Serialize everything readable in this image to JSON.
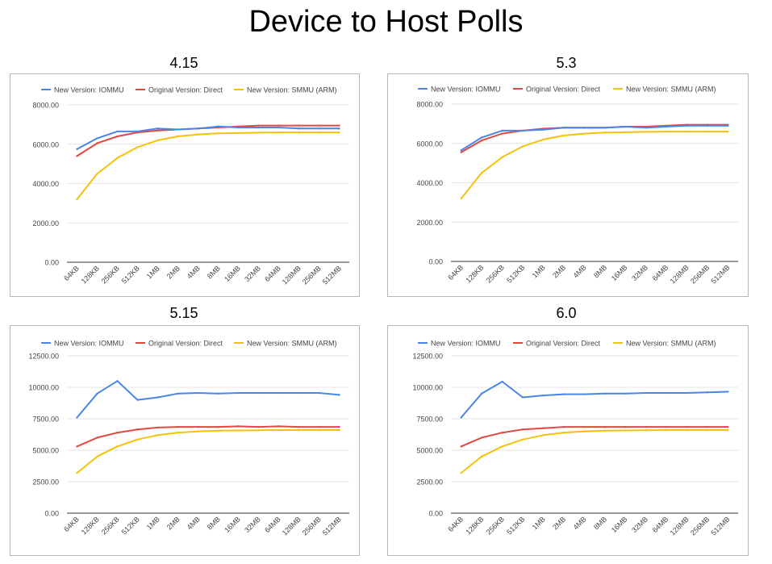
{
  "title": "Device to Host Polls",
  "legend_labels": [
    "New Version: IOMMU",
    "Original Version: Direct",
    "New Version: SMMU (ARM)"
  ],
  "colors": {
    "iommu": "#4a86e8",
    "direct": "#e04a3f",
    "smmu": "#f4c20d",
    "grid": "#dadada",
    "axis": "#333333"
  },
  "chart_data": [
    {
      "type": "line",
      "title": "4.15",
      "categories": [
        "64KB",
        "128KB",
        "256KB",
        "512KB",
        "1MB",
        "2MB",
        "4MB",
        "8MB",
        "16MB",
        "32MB",
        "64MB",
        "128MB",
        "256MB",
        "512MB"
      ],
      "ylim": [
        0,
        8000
      ],
      "yticks": [
        "0.00",
        "2000.00",
        "4000.00",
        "6000.00",
        "8000.00"
      ],
      "ytick_values": [
        0,
        2000,
        4000,
        6000,
        8000
      ],
      "legend_position": "top",
      "series": [
        {
          "name": "New Version: IOMMU",
          "values": [
            5750,
            6300,
            6650,
            6650,
            6800,
            6750,
            6800,
            6900,
            6850,
            6850,
            6850,
            6800,
            6800,
            6800
          ]
        },
        {
          "name": "Original Version: Direct",
          "values": [
            5400,
            6050,
            6400,
            6600,
            6700,
            6750,
            6800,
            6850,
            6900,
            6950,
            6950,
            6950,
            6950,
            6950
          ]
        },
        {
          "name": "New Version: SMMU (ARM)",
          "values": [
            3200,
            4500,
            5300,
            5850,
            6200,
            6400,
            6500,
            6550,
            6570,
            6590,
            6600,
            6600,
            6600,
            6600
          ]
        }
      ]
    },
    {
      "type": "line",
      "title": "5.3",
      "categories": [
        "64KB",
        "128KB",
        "256KB",
        "512KB",
        "1MB",
        "2MB",
        "4MB",
        "8MB",
        "16MB",
        "32MB",
        "64MB",
        "128MB",
        "256MB",
        "512MB"
      ],
      "ylim": [
        0,
        8000
      ],
      "yticks": [
        "0.00",
        "2000.00",
        "4000.00",
        "6000.00",
        "8000.00"
      ],
      "ytick_values": [
        0,
        2000,
        4000,
        6000,
        8000
      ],
      "legend_position": "top",
      "series": [
        {
          "name": "New Version: IOMMU",
          "values": [
            5650,
            6300,
            6650,
            6650,
            6700,
            6800,
            6800,
            6800,
            6850,
            6800,
            6850,
            6900,
            6900,
            6900
          ]
        },
        {
          "name": "Original Version: Direct",
          "values": [
            5550,
            6150,
            6500,
            6650,
            6750,
            6800,
            6800,
            6800,
            6850,
            6850,
            6900,
            6950,
            6950,
            6950
          ]
        },
        {
          "name": "New Version: SMMU (ARM)",
          "values": [
            3200,
            4500,
            5300,
            5850,
            6200,
            6400,
            6500,
            6550,
            6570,
            6590,
            6600,
            6600,
            6600,
            6600
          ]
        }
      ]
    },
    {
      "type": "line",
      "title": "5.15",
      "categories": [
        "64KB",
        "128KB",
        "256KB",
        "512KB",
        "1MB",
        "2MB",
        "4MB",
        "8MB",
        "16MB",
        "32MB",
        "64MB",
        "128MB",
        "256MB",
        "512MB"
      ],
      "ylim": [
        0,
        12500
      ],
      "yticks": [
        "0.00",
        "2500.00",
        "5000.00",
        "7500.00",
        "10000.00",
        "12500.00"
      ],
      "ytick_values": [
        0,
        2500,
        5000,
        7500,
        10000,
        12500
      ],
      "legend_position": "top",
      "series": [
        {
          "name": "New Version: IOMMU",
          "values": [
            7600,
            9500,
            10500,
            9000,
            9200,
            9500,
            9550,
            9500,
            9550,
            9550,
            9550,
            9550,
            9550,
            9400
          ]
        },
        {
          "name": "Original Version: Direct",
          "values": [
            5300,
            6000,
            6400,
            6650,
            6800,
            6850,
            6850,
            6850,
            6900,
            6850,
            6900,
            6850,
            6850,
            6850
          ]
        },
        {
          "name": "New Version: SMMU (ARM)",
          "values": [
            3200,
            4500,
            5300,
            5850,
            6200,
            6400,
            6500,
            6550,
            6570,
            6590,
            6600,
            6600,
            6600,
            6600
          ]
        }
      ]
    },
    {
      "type": "line",
      "title": "6.0",
      "categories": [
        "64KB",
        "128KB",
        "256KB",
        "512KB",
        "1MB",
        "2MB",
        "4MB",
        "8MB",
        "16MB",
        "32MB",
        "64MB",
        "128MB",
        "256MB",
        "512MB"
      ],
      "ylim": [
        0,
        12500
      ],
      "yticks": [
        "0.00",
        "2500.00",
        "5000.00",
        "7500.00",
        "10000.00",
        "12500.00"
      ],
      "ytick_values": [
        0,
        2500,
        5000,
        7500,
        10000,
        12500
      ],
      "legend_position": "top",
      "series": [
        {
          "name": "New Version: IOMMU",
          "values": [
            7600,
            9500,
            10450,
            9200,
            9350,
            9450,
            9450,
            9500,
            9500,
            9550,
            9550,
            9550,
            9600,
            9650
          ]
        },
        {
          "name": "Original Version: Direct",
          "values": [
            5300,
            6000,
            6400,
            6650,
            6750,
            6850,
            6850,
            6850,
            6850,
            6850,
            6850,
            6850,
            6850,
            6850
          ]
        },
        {
          "name": "New Version: SMMU (ARM)",
          "values": [
            3200,
            4500,
            5300,
            5850,
            6200,
            6400,
            6500,
            6550,
            6570,
            6590,
            6600,
            6600,
            6600,
            6600
          ]
        }
      ]
    }
  ]
}
